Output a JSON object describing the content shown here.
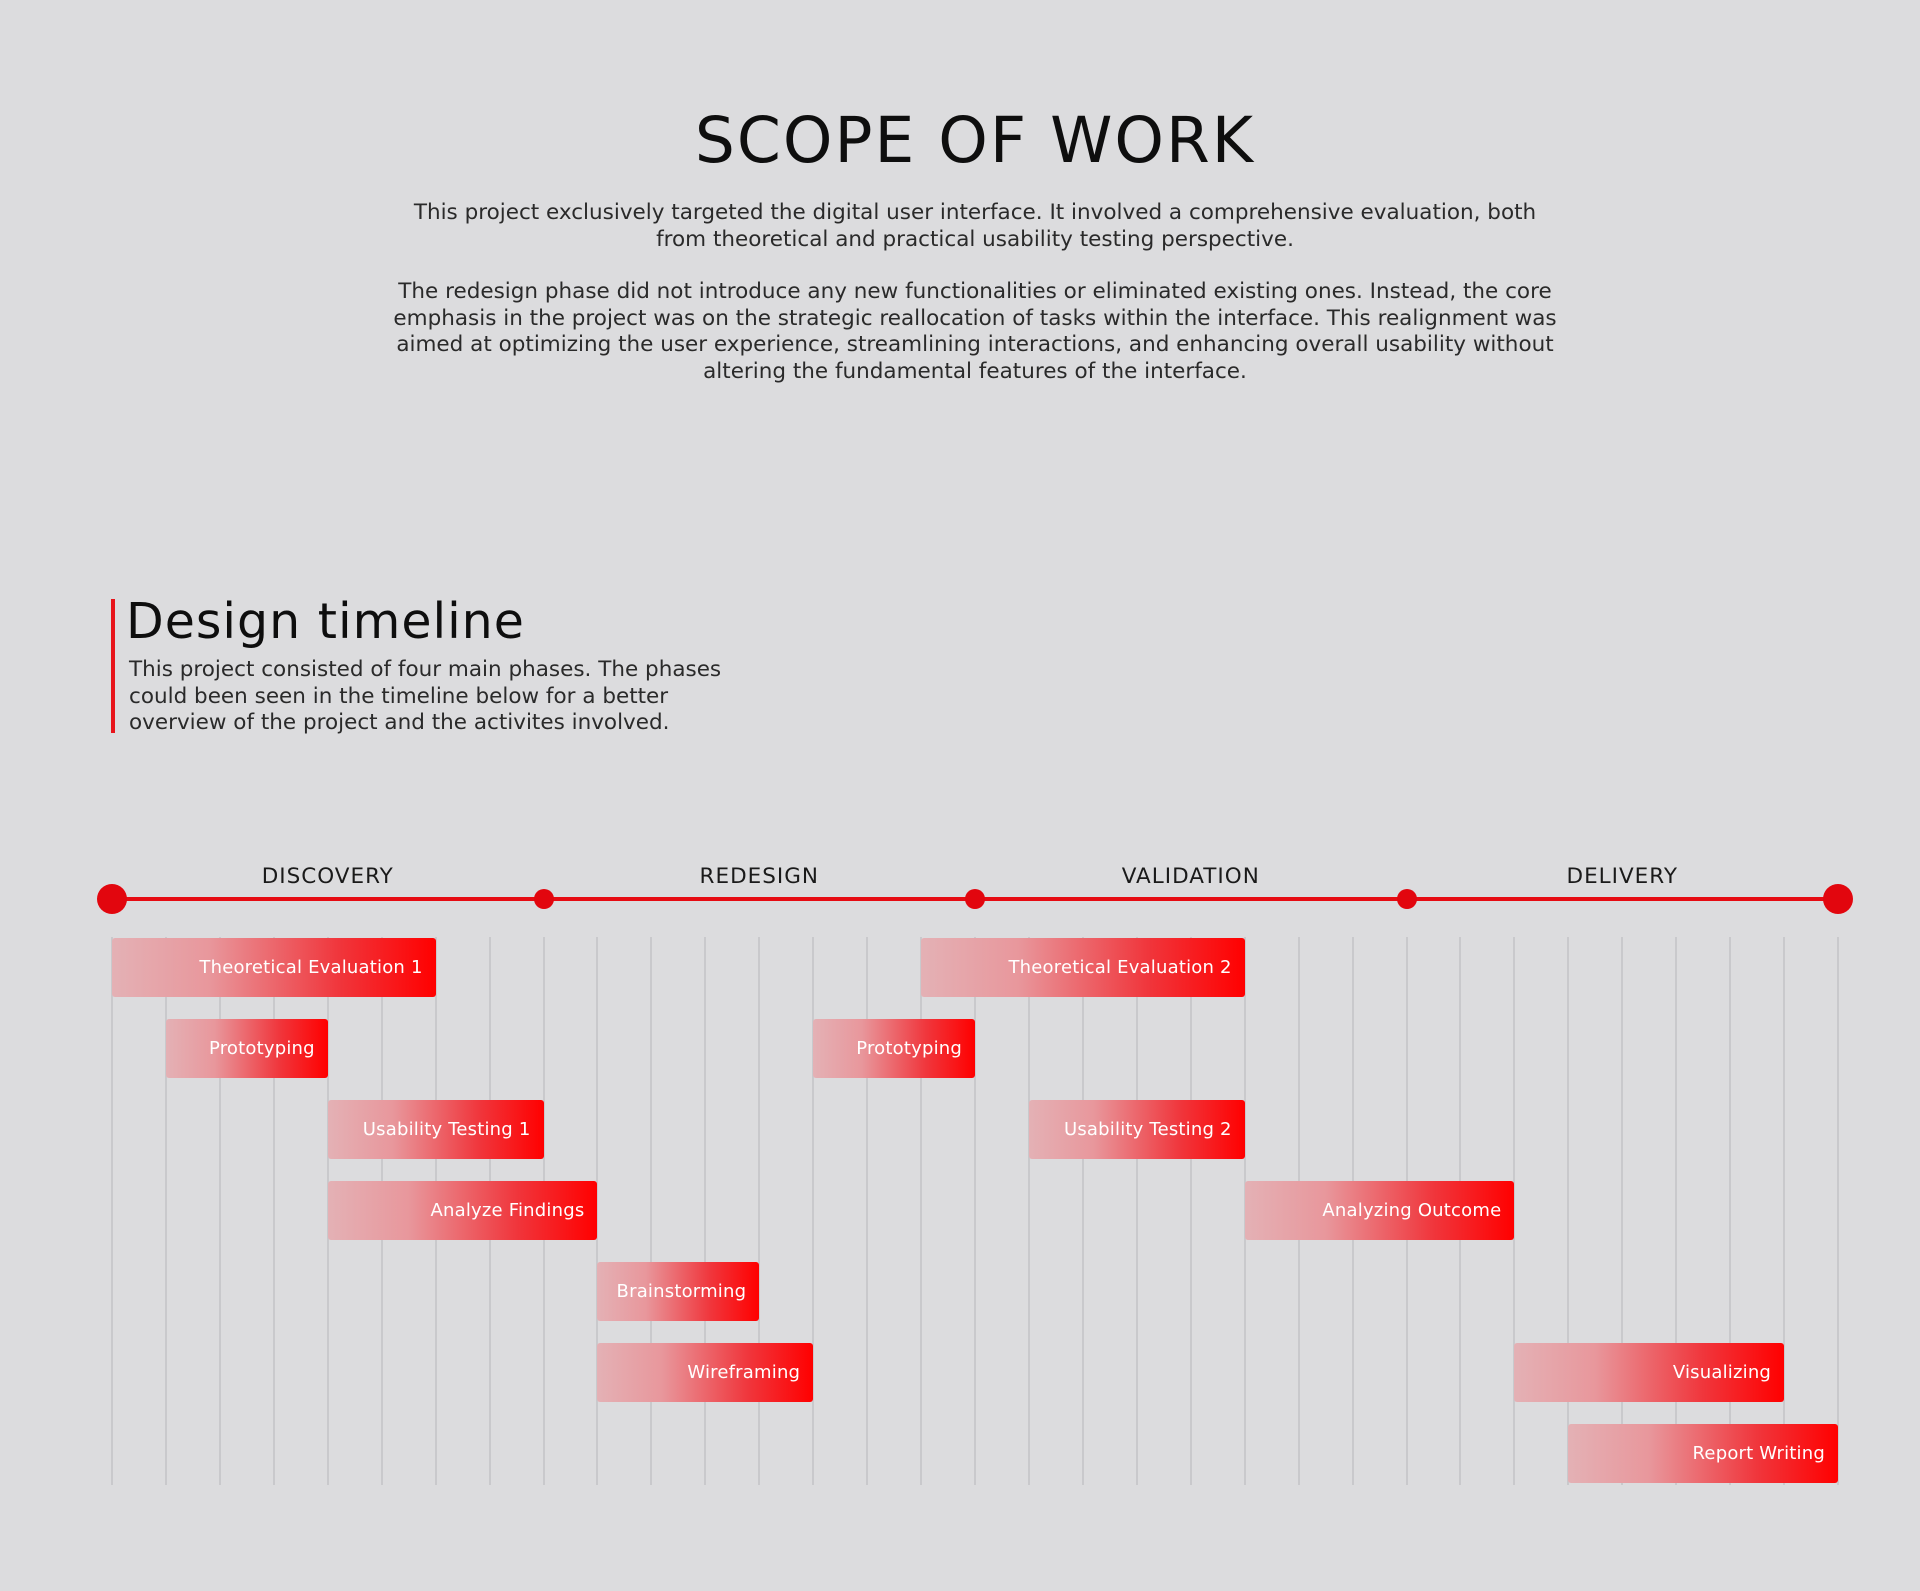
{
  "scope": {
    "title": "SCOPE OF WORK",
    "paragraph1": "This project exclusively targeted the digital user interface. It involved a comprehensive evaluation, both from theoretical and practical usability testing perspective.",
    "paragraph2": "The redesign phase did not introduce any new functionalities or eliminated existing ones. Instead, the core emphasis in the project was on the strategic reallocation of tasks within the interface. This realignment was aimed at optimizing the user experience, streamlining interactions, and enhancing overall usability without altering the fundamental features of the interface."
  },
  "timeline": {
    "title": "Design timeline",
    "description": "This project consisted of four main phases. The phases could been seen in the timeline below for a better overview of the project and the activites involved."
  },
  "colors": {
    "accent": "#e60b12",
    "background": "#dcdcde",
    "bar_start": "#e4b1b5",
    "bar_end": "#ff0000"
  },
  "gantt": {
    "total_units": 32,
    "phases": [
      {
        "name": "DISCOVERY",
        "start": 0,
        "end": 8
      },
      {
        "name": "REDESIGN",
        "start": 8,
        "end": 16
      },
      {
        "name": "VALIDATION",
        "start": 16,
        "end": 24
      },
      {
        "name": "DELIVERY",
        "start": 24,
        "end": 32
      }
    ],
    "tasks": [
      {
        "label": "Theoretical Evaluation 1",
        "start": 0,
        "end": 6,
        "row": 0
      },
      {
        "label": "Prototyping",
        "start": 1,
        "end": 4,
        "row": 1
      },
      {
        "label": "Usability Testing 1",
        "start": 4,
        "end": 8,
        "row": 2
      },
      {
        "label": "Analyze Findings",
        "start": 4,
        "end": 9,
        "row": 3
      },
      {
        "label": "Brainstorming",
        "start": 9,
        "end": 12,
        "row": 4
      },
      {
        "label": "Wireframing",
        "start": 9,
        "end": 13,
        "row": 5
      },
      {
        "label": "Prototyping",
        "start": 13,
        "end": 16,
        "row": 1
      },
      {
        "label": "Theoretical Evaluation 2",
        "start": 15,
        "end": 21,
        "row": 0
      },
      {
        "label": "Usability Testing 2",
        "start": 17,
        "end": 21,
        "row": 2
      },
      {
        "label": "Analyzing Outcome",
        "start": 21,
        "end": 26,
        "row": 3
      },
      {
        "label": "Visualizing",
        "start": 26,
        "end": 31,
        "row": 5
      },
      {
        "label": "Report Writing",
        "start": 27,
        "end": 32,
        "row": 6
      }
    ]
  }
}
